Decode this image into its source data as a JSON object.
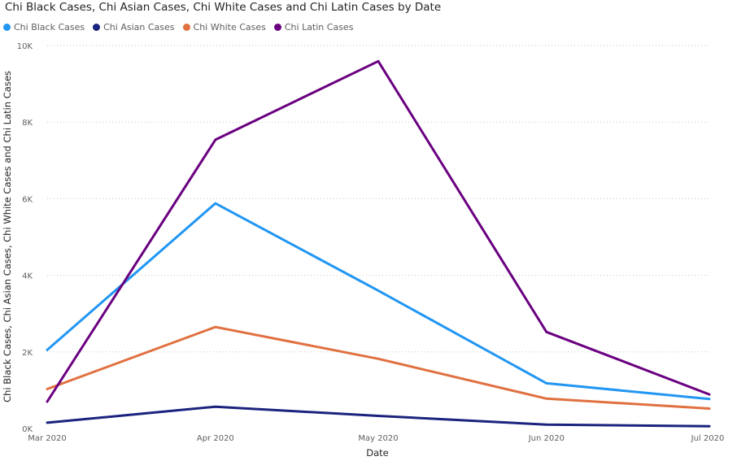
{
  "chart_data": {
    "type": "line",
    "title": "Chi Black Cases, Chi Asian Cases, Chi White Cases and Chi Latin Cases by Date",
    "xlabel": "Date",
    "ylabel": "Chi Black Cases, Chi Asian Cases, Chi White Cases and Chi Latin Cases",
    "categories": [
      "Mar 2020",
      "Apr 2020",
      "May 2020",
      "Jun 2020",
      "Jul 2020"
    ],
    "x": [
      "2020-03-01",
      "2020-04-01",
      "2020-05-01",
      "2020-06-01",
      "2020-07-01"
    ],
    "ylim": [
      0,
      10000
    ],
    "yticks": [
      0,
      2000,
      4000,
      6000,
      8000,
      10000
    ],
    "ytick_labels": [
      "0K",
      "2K",
      "4K",
      "6K",
      "8K",
      "10K"
    ],
    "grid": true,
    "legend_position": "top-left",
    "series": [
      {
        "name": "Chi Black Cases",
        "color": "#2196f3",
        "values": [
          2050,
          5880,
          3600,
          1180,
          770
        ]
      },
      {
        "name": "Chi Asian Cases",
        "color": "#1a237e",
        "values": [
          150,
          570,
          330,
          100,
          60
        ]
      },
      {
        "name": "Chi White Cases",
        "color": "#e07040",
        "values": [
          1030,
          2650,
          1820,
          780,
          520
        ]
      },
      {
        "name": "Chi Latin Cases",
        "color": "#6a0080",
        "values": [
          700,
          7540,
          9590,
          2520,
          890
        ]
      }
    ]
  }
}
